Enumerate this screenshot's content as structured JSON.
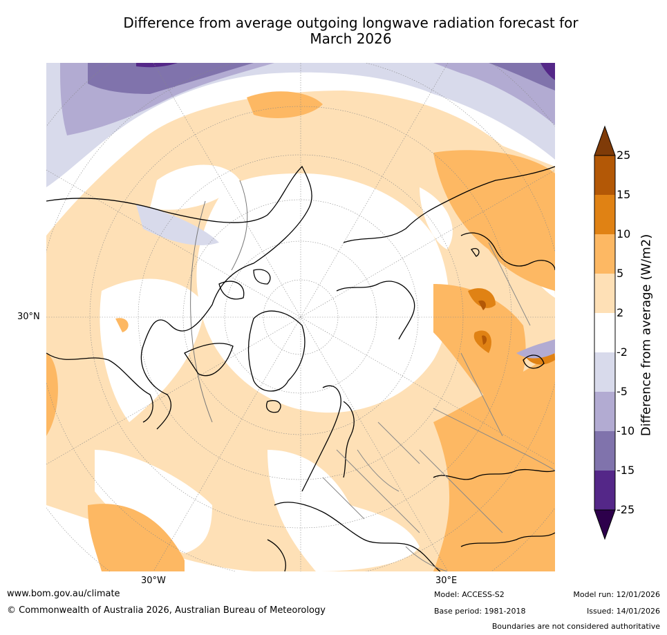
{
  "title": {
    "line1": "Difference from average outgoing longwave radiation forecast for",
    "line2": "March 2026"
  },
  "axis_labels": {
    "lat_30n": "30°N",
    "lon_30w": "30°W",
    "lon_30e": "30°E"
  },
  "colorbar": {
    "label": "Difference from average (W/m2)",
    "ticks": [
      "25",
      "15",
      "10",
      "5",
      "2",
      "-2",
      "-5",
      "-10",
      "-15",
      "-25"
    ],
    "colors": {
      "gt25": "#7f3b08",
      "15_25": "#b35806",
      "10_15": "#e08214",
      "5_10": "#fdb863",
      "2_5": "#fee0b6",
      "m2_2": "#ffffff",
      "m5_m2": "#d8daeb",
      "m10_m5": "#b2abd2",
      "m15_m10": "#8073ac",
      "m25_m15": "#542788",
      "lt_m25": "#2d004b"
    }
  },
  "footer": {
    "website": "www.bom.gov.au/climate",
    "copyright": "© Commonwealth of Australia 2026, Australian Bureau of Meteorology",
    "model": "Model: ACCESS-S2",
    "base_period": "Base period: 1981-2018",
    "model_run": "Model run: 12/01/2026",
    "issued": "Issued: 14/01/2026",
    "disclaimer": "Boundaries are not considered authoritative"
  },
  "map_features": {
    "projection": "north-polar-stereographic",
    "land_outline_color": "#000000",
    "border_color": "#888888",
    "graticule_color": "#888888"
  }
}
